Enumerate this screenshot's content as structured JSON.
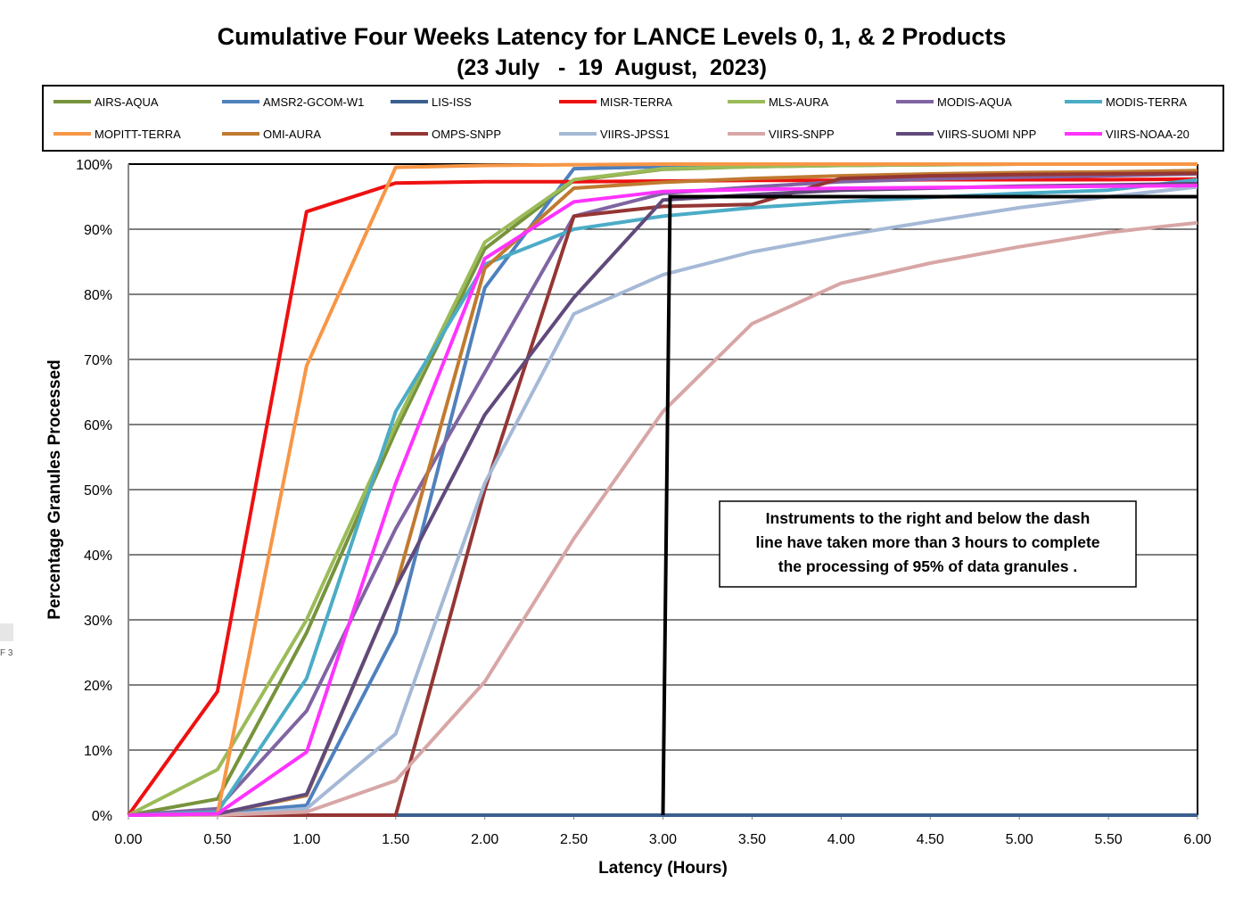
{
  "chart_data": {
    "type": "line",
    "title": "Cumulative Four Weeks Latency  for LANCE Levels 0, 1, & 2 Products",
    "subtitle": "(23 July   -  19  August,  2023)",
    "xlabel": "Latency (Hours)",
    "ylabel": "Percentage Granules Processed",
    "x_ticks": [
      "0.00",
      "0.50",
      "1.00",
      "1.50",
      "2.00",
      "2.50",
      "3.00",
      "3.50",
      "4.00",
      "4.50",
      "5.00",
      "5.50",
      "6.00"
    ],
    "y_ticks": [
      "0%",
      "10%",
      "20%",
      "30%",
      "40%",
      "50%",
      "60%",
      "70%",
      "80%",
      "90%",
      "100%"
    ],
    "xlim": [
      0,
      6
    ],
    "ylim": [
      0,
      100
    ],
    "grid": "horizontal",
    "legend_position": "top",
    "x": [
      0,
      0.5,
      1.0,
      1.5,
      2.0,
      2.5,
      3.0,
      3.5,
      4.0,
      4.5,
      5.0,
      5.5,
      6.0
    ],
    "series": [
      {
        "name": "AIRS-AQUA",
        "color": "#77933c",
        "values": [
          0,
          2.5,
          28,
          59,
          87,
          97.5,
          99.2,
          99.6,
          99.8,
          99.9,
          100,
          100,
          100
        ]
      },
      {
        "name": "AMSR2-GCOM-W1",
        "color": "#4f81bd",
        "values": [
          0,
          0.3,
          1.5,
          28,
          81,
          99.3,
          99.6,
          99.8,
          99.9,
          100,
          100,
          100,
          100
        ]
      },
      {
        "name": "LIS-ISS",
        "color": "#3a5f8f",
        "values": [
          0,
          0,
          0,
          0,
          0,
          0,
          0,
          0,
          0,
          0,
          0,
          0,
          0
        ]
      },
      {
        "name": "MISR-TERRA",
        "color": "#ee1111",
        "values": [
          0,
          19,
          92.7,
          97.1,
          97.3,
          97.3,
          97.4,
          97.5,
          97.5,
          97.6,
          97.6,
          97.6,
          97.7
        ]
      },
      {
        "name": "MLS-AURA",
        "color": "#9bbb59",
        "values": [
          0,
          7,
          30,
          60,
          88,
          97.6,
          99.3,
          99.6,
          99.8,
          99.9,
          100,
          100,
          100
        ]
      },
      {
        "name": "MODIS-AQUA",
        "color": "#8064a2",
        "values": [
          0,
          1,
          16,
          44,
          68,
          92,
          95.5,
          96.5,
          97.3,
          97.7,
          98,
          98.2,
          98.5
        ]
      },
      {
        "name": "MODIS-TERRA",
        "color": "#4bacc6",
        "values": [
          0,
          0.5,
          21,
          62,
          84.6,
          90,
          92,
          93.3,
          94.2,
          94.9,
          95.5,
          96,
          97.6
        ]
      },
      {
        "name": "MOPITT-TERRA",
        "color": "#f79646",
        "values": [
          0,
          0.2,
          69,
          99.5,
          99.8,
          99.9,
          100,
          100,
          100,
          100,
          100,
          100,
          100
        ]
      },
      {
        "name": "OMI-AURA",
        "color": "#c07a30",
        "values": [
          0,
          0.2,
          3,
          35,
          84,
          96.3,
          97.2,
          97.8,
          98.2,
          98.5,
          98.7,
          98.8,
          99
        ]
      },
      {
        "name": "OMPS-SNPP",
        "color": "#943634",
        "values": [
          0,
          0,
          0,
          0,
          50,
          92,
          93.5,
          93.8,
          97.8,
          98.2,
          98.4,
          98.5,
          98.6
        ]
      },
      {
        "name": "VIIRS-JPSS1",
        "color": "#a5b9d6",
        "values": [
          0,
          0,
          1,
          12.5,
          51,
          77,
          83,
          86.5,
          89,
          91.2,
          93.3,
          95,
          96.5
        ]
      },
      {
        "name": "VIIRS-SNPP",
        "color": "#d8a6a6",
        "values": [
          0,
          0,
          0.5,
          5.3,
          20.5,
          42.5,
          62,
          75.5,
          81.7,
          84.8,
          87.3,
          89.5,
          91
        ]
      },
      {
        "name": "VIIRS-SUOMI NPP",
        "color": "#604a7b",
        "values": [
          0,
          0.2,
          3.2,
          35,
          61.5,
          79.5,
          94.5,
          95.3,
          96,
          96.3,
          96.6,
          96.8,
          97
        ]
      },
      {
        "name": "VIIRS-NOAA-20",
        "color": "#ff33ff",
        "values": [
          0,
          0.2,
          9.7,
          51,
          85.5,
          94.2,
          95.8,
          96.1,
          96.3,
          96.4,
          96.5,
          96.6,
          96.7
        ]
      }
    ],
    "threshold": {
      "x": 3.0,
      "y": 95,
      "color": "#000000"
    },
    "annotation": "Instruments to the right and below the dash line have taken more than 3 hours to complete the processing of 95% of data granules ."
  },
  "sidebar": {
    "fragment": "F 3"
  }
}
